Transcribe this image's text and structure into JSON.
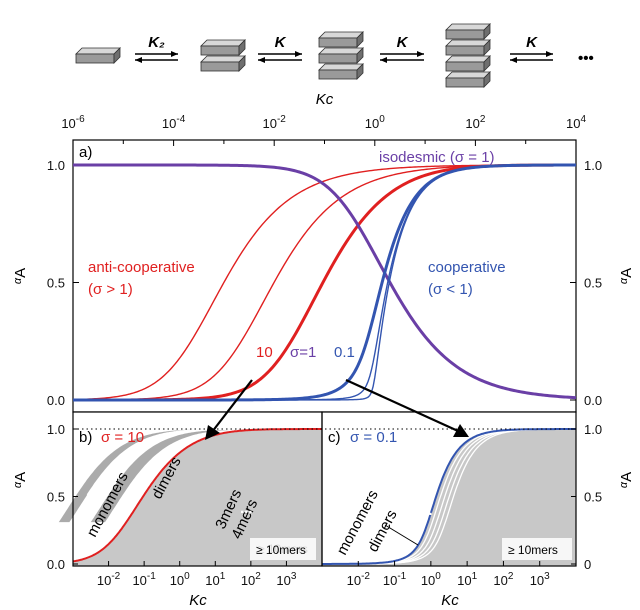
{
  "scheme": {
    "constants": [
      "K₂",
      "K",
      "K",
      "K"
    ],
    "ellipsis": "•••",
    "stack_sizes": [
      1,
      2,
      3,
      4,
      5
    ]
  },
  "top_axis": {
    "label": "Kc",
    "ticks": [
      {
        "base": "10",
        "exp": "-6"
      },
      {
        "base": "10",
        "exp": "-4"
      },
      {
        "base": "10",
        "exp": "-2"
      },
      {
        "base": "10",
        "exp": "0"
      },
      {
        "base": "10",
        "exp": "2"
      },
      {
        "base": "10",
        "exp": "4"
      }
    ]
  },
  "colors": {
    "red": "#e02020",
    "purple": "#6a3fa6",
    "blue": "#3355b0",
    "gray_light": "#c8c8c8",
    "gray_dark": "#8f8f8f"
  },
  "chart_data": [
    {
      "panel": "a)",
      "type": "line",
      "xscale": "log",
      "xlim": [
        1e-06,
        10000.0
      ],
      "ylim": [
        0,
        1
      ],
      "ylabel": "αA",
      "yticks": [
        "0.0",
        "0.5",
        "1.0"
      ],
      "yticks_right": [
        "0.0",
        "0.5",
        "1.0"
      ],
      "series": [
        {
          "sigma": 1000,
          "color": "red",
          "width": 1.4
        },
        {
          "sigma": 100,
          "color": "red",
          "width": 1.4
        },
        {
          "sigma": 10,
          "color": "red",
          "width": 3
        },
        {
          "sigma": 1,
          "color": "purple",
          "width": 3
        },
        {
          "sigma": 0.1,
          "color": "blue",
          "width": 3
        },
        {
          "sigma": 0.01,
          "color": "blue",
          "width": 1.4
        },
        {
          "sigma": 0.001,
          "color": "blue",
          "width": 1.4
        }
      ],
      "annotations": {
        "isodesmic": "isodesmic (σ = 1)",
        "anticoop_1": "anti-cooperative",
        "anticoop_2": "(σ > 1)",
        "coop_1": "cooperative",
        "coop_2": "(σ < 1)",
        "label_10": "10",
        "label_1": "σ=1",
        "label_01": "0.1"
      }
    },
    {
      "panel": "b)",
      "type": "area",
      "sigma_label": "σ = 10",
      "xlabel": "Kc",
      "ylabel": "αA",
      "xticks": [
        {
          "base": "10",
          "exp": "-2"
        },
        {
          "base": "10",
          "exp": "-1"
        },
        {
          "base": "10",
          "exp": "0"
        },
        {
          "base": "10",
          "exp": "1"
        },
        {
          "base": "10",
          "exp": "2"
        },
        {
          "base": "10",
          "exp": "3"
        }
      ],
      "yticks": [
        "0.0",
        "0.5",
        "1.0"
      ],
      "labels": {
        "monomers": "monomers",
        "dimers": "dimers",
        "trimers": "3mers",
        "tetramers": "4mers",
        "dots": "...",
        "tail": "≥ 10mers"
      }
    },
    {
      "panel": "c)",
      "type": "area",
      "sigma_label": "σ = 0.1",
      "xlabel": "Kc",
      "xticks": [
        {
          "base": "10",
          "exp": "-2"
        },
        {
          "base": "10",
          "exp": "-1"
        },
        {
          "base": "10",
          "exp": "0"
        },
        {
          "base": "10",
          "exp": "1"
        },
        {
          "base": "10",
          "exp": "2"
        },
        {
          "base": "10",
          "exp": "3"
        }
      ],
      "yticks_right": [
        "0",
        "0.5",
        "1.0"
      ],
      "labels": {
        "monomers": "monomers",
        "dimers": "dimers",
        "dots": "...",
        "tail": "≥ 10mers"
      }
    }
  ]
}
